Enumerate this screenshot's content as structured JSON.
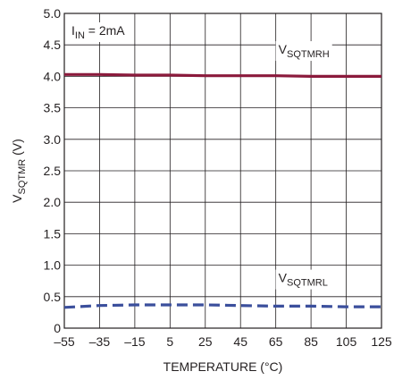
{
  "chart_data": {
    "type": "line",
    "ylabel_main": "V",
    "ylabel_sub": "SQTMR",
    "ylabel_tail": " (V)",
    "xlabel": "TEMPERATURE (°C)",
    "xlim": [
      -55,
      125
    ],
    "ylim": [
      0,
      5.0
    ],
    "grid": true,
    "x_ticks": [
      "–55",
      "–35",
      "–15",
      "5",
      "25",
      "45",
      "65",
      "85",
      "105",
      "125"
    ],
    "y_ticks": [
      "0",
      "0.5",
      "1.0",
      "1.5",
      "2.0",
      "2.5",
      "3.0",
      "3.5",
      "4.0",
      "4.5",
      "5.0"
    ],
    "annotation": {
      "main": "I",
      "sub": "IN",
      "tail": " = 2mA"
    },
    "series": [
      {
        "label_main": "V",
        "label_sub": "SQTMRH",
        "color": "#8b1a3c",
        "style": "solid",
        "x": [
          -55,
          -35,
          -15,
          5,
          25,
          45,
          65,
          85,
          105,
          125
        ],
        "y": [
          4.03,
          4.03,
          4.02,
          4.02,
          4.01,
          4.01,
          4.01,
          4.0,
          4.0,
          4.0
        ]
      },
      {
        "label_main": "V",
        "label_sub": "SQTMRL",
        "color": "#3b4f9c",
        "style": "dashed",
        "x": [
          -55,
          -35,
          -15,
          5,
          25,
          45,
          65,
          85,
          105,
          125
        ],
        "y": [
          0.33,
          0.36,
          0.37,
          0.37,
          0.37,
          0.36,
          0.35,
          0.35,
          0.34,
          0.34
        ]
      }
    ]
  }
}
